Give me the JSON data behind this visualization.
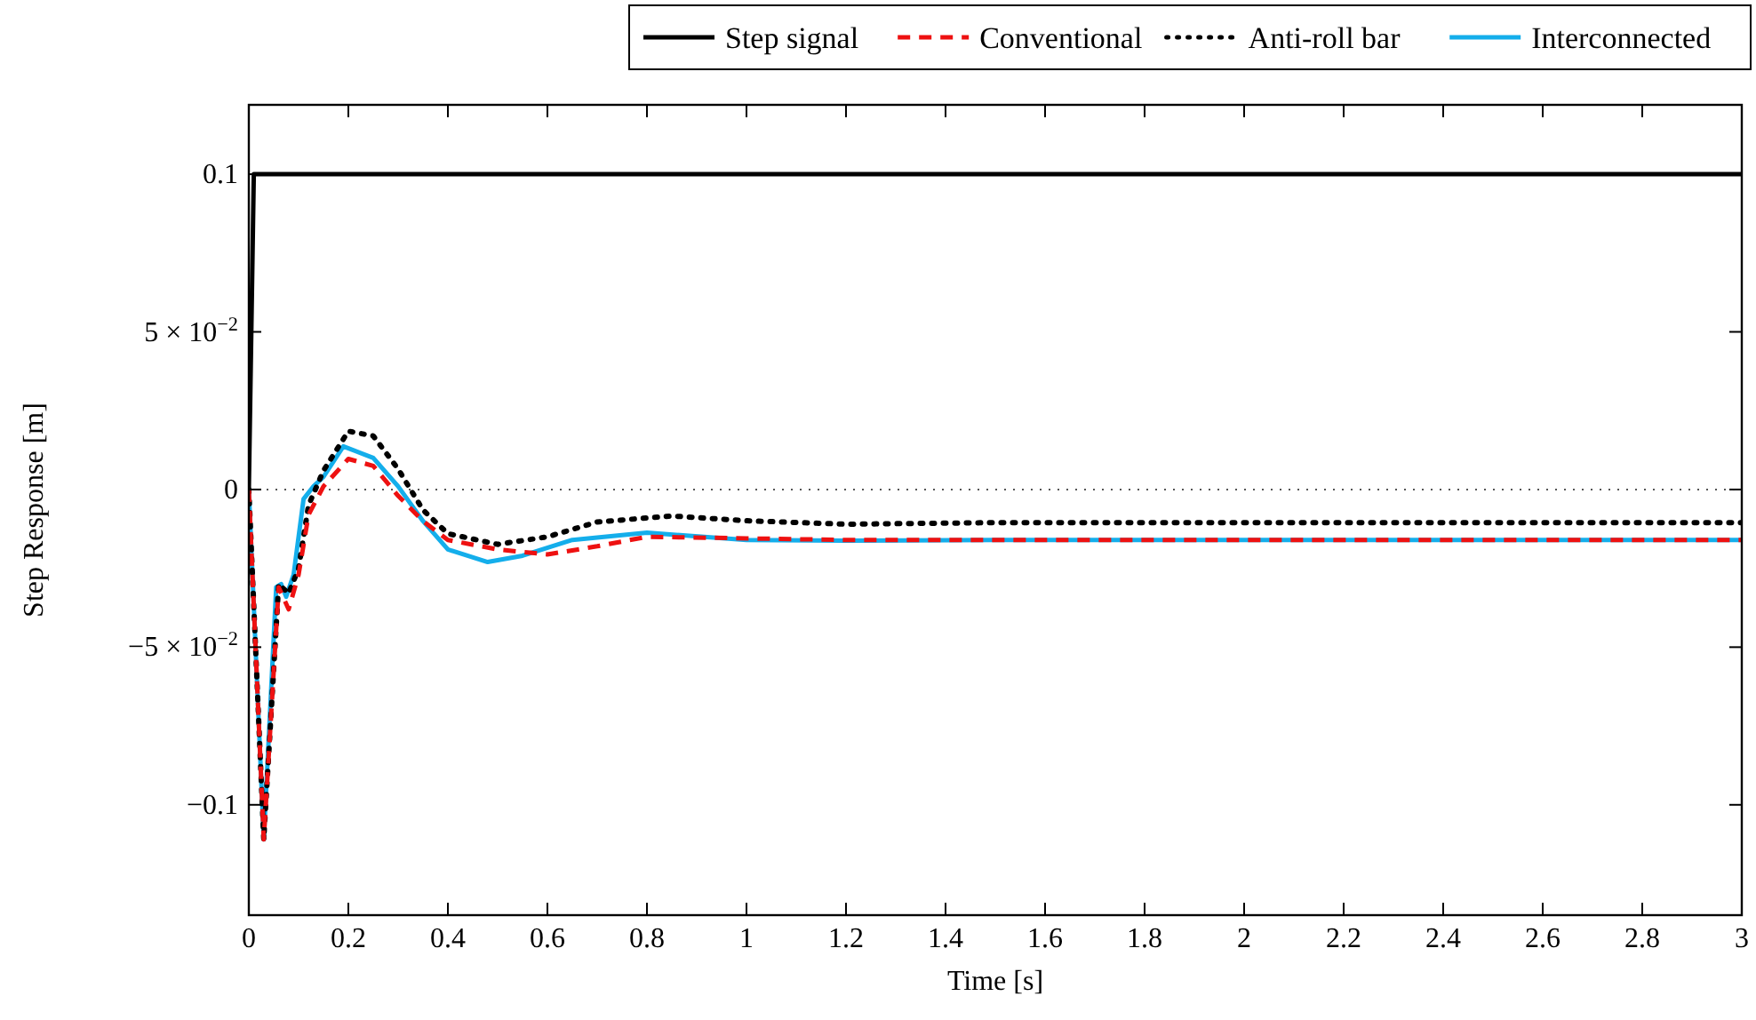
{
  "chart_data": {
    "type": "line",
    "xlabel": "Time [s]",
    "ylabel": "Step Response [m]",
    "xlim": [
      0,
      3
    ],
    "ylim": [
      -0.135,
      0.122
    ],
    "xticks": [
      0,
      0.2,
      0.4,
      0.6,
      0.8,
      1,
      1.2,
      1.4,
      1.6,
      1.8,
      2,
      2.2,
      2.4,
      2.6,
      2.8,
      3
    ],
    "yticks": [
      {
        "value": -0.1,
        "label": "−0.1"
      },
      {
        "value": -0.05,
        "label": "−5 × 10$^{−2}$"
      },
      0,
      {
        "value": 0.05,
        "label": "5 × 10$^{−2}$"
      },
      0.1
    ],
    "grid": false,
    "legend": "top",
    "marker": "none",
    "ref_lines": [
      {
        "axis": "y",
        "value": 0,
        "color": "#555555",
        "line_style": "dotted"
      }
    ],
    "series": [
      {
        "name": "Step signal",
        "color": "#000000",
        "line_style": "solid",
        "x": [
          0,
          0.01,
          3
        ],
        "values": [
          0,
          0.1,
          0.1
        ]
      },
      {
        "name": "Conventional",
        "color": "#ee1111",
        "line_style": "dashed",
        "x": [
          0,
          0.03,
          0.06,
          0.08,
          0.1,
          0.12,
          0.15,
          0.2,
          0.25,
          0.3,
          0.35,
          0.4,
          0.5,
          0.6,
          0.7,
          0.8,
          1,
          1.2,
          1.5,
          2,
          3
        ],
        "values": [
          0,
          -0.111,
          -0.031,
          -0.038,
          -0.027,
          -0.008,
          0.001,
          0.0097,
          0.0075,
          -0.002,
          -0.01,
          -0.016,
          -0.019,
          -0.0206,
          -0.018,
          -0.015,
          -0.0155,
          -0.016,
          -0.016,
          -0.016,
          -0.016
        ]
      },
      {
        "name": "Anti-roll bar",
        "color": "#000000",
        "line_style": "dotted",
        "x": [
          0,
          0.03,
          0.06,
          0.08,
          0.1,
          0.12,
          0.15,
          0.2,
          0.25,
          0.3,
          0.35,
          0.4,
          0.5,
          0.6,
          0.7,
          0.85,
          1,
          1.2,
          1.5,
          2,
          3
        ],
        "values": [
          0,
          -0.111,
          -0.03,
          -0.033,
          -0.025,
          -0.005,
          0.006,
          0.0185,
          0.017,
          0.0065,
          -0.0065,
          -0.014,
          -0.0174,
          -0.015,
          -0.0103,
          -0.0084,
          -0.0099,
          -0.011,
          -0.0105,
          -0.0105,
          -0.0105
        ]
      },
      {
        "name": "Interconnected",
        "color": "#14aeeb",
        "line_style": "solid",
        "x": [
          0,
          0.03,
          0.055,
          0.065,
          0.075,
          0.09,
          0.11,
          0.13,
          0.15,
          0.19,
          0.25,
          0.3,
          0.35,
          0.4,
          0.48,
          0.55,
          0.65,
          0.8,
          1,
          1.2,
          1.5,
          2,
          3
        ],
        "values": [
          0,
          -0.111,
          -0.031,
          -0.03,
          -0.034,
          -0.027,
          -0.003,
          0.001,
          0.004,
          0.0137,
          0.01,
          0.001,
          -0.01,
          -0.019,
          -0.023,
          -0.021,
          -0.016,
          -0.0137,
          -0.016,
          -0.0162,
          -0.016,
          -0.016,
          -0.016
        ]
      }
    ]
  }
}
